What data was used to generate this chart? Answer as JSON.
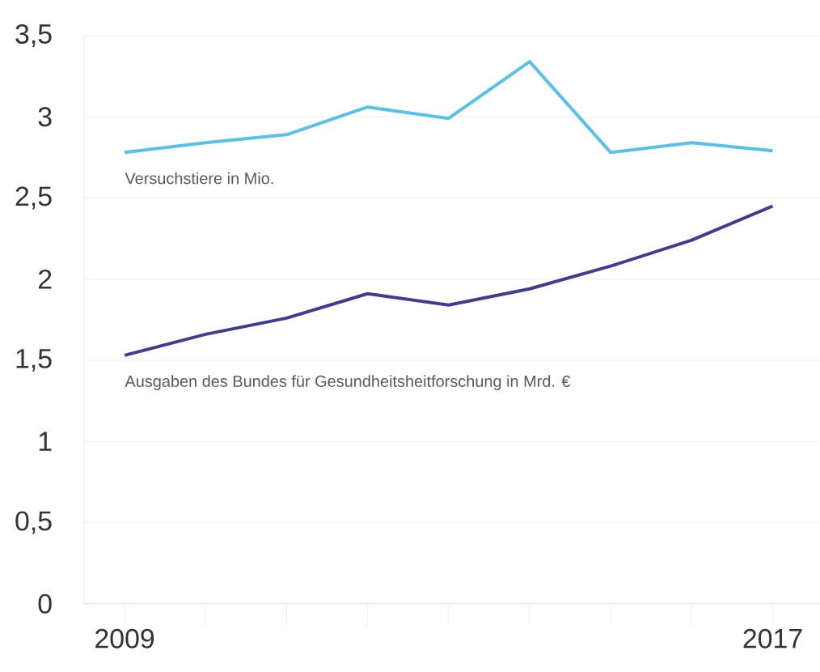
{
  "chart_data": {
    "type": "line",
    "x": [
      2009,
      2010,
      2011,
      2012,
      2013,
      2014,
      2015,
      2016,
      2017
    ],
    "series": [
      {
        "name": "Versuchstiere in Mio.",
        "color": "#5bc0e8",
        "values": [
          2.78,
          2.84,
          2.89,
          3.06,
          2.99,
          3.34,
          2.78,
          2.84,
          2.79
        ]
      },
      {
        "name": "Ausgaben des Bundes für Gesundheitsheitforschung in Mrd. €",
        "color": "#3f3d8f",
        "values": [
          1.53,
          1.66,
          1.76,
          1.91,
          1.84,
          1.94,
          2.08,
          2.24,
          2.45
        ]
      }
    ],
    "xlim": [
      2008.5,
      2017.58
    ],
    "ylim": [
      0,
      3.5
    ],
    "xticks": [
      2009,
      {
        "value": 2010,
        "label": null
      },
      {
        "value": 2011,
        "label": null
      },
      {
        "value": 2012,
        "label": null
      },
      {
        "value": 2013,
        "label": null
      },
      {
        "value": 2014,
        "label": null
      },
      {
        "value": 2015,
        "label": null
      },
      {
        "value": 2016,
        "label": null
      },
      2017
    ],
    "yticks": [
      {
        "value": 0,
        "label": "0"
      },
      {
        "value": 0.5,
        "label": "0,5"
      },
      {
        "value": 1,
        "label": "1"
      },
      {
        "value": 1.5,
        "label": "1,5"
      },
      {
        "value": 2,
        "label": "2"
      },
      {
        "value": 2.5,
        "label": "2,5"
      },
      {
        "value": 3,
        "label": "3"
      },
      {
        "value": 3.5,
        "label": "3,5"
      }
    ],
    "grid": "y",
    "marker": "none",
    "line_style": "solid"
  }
}
